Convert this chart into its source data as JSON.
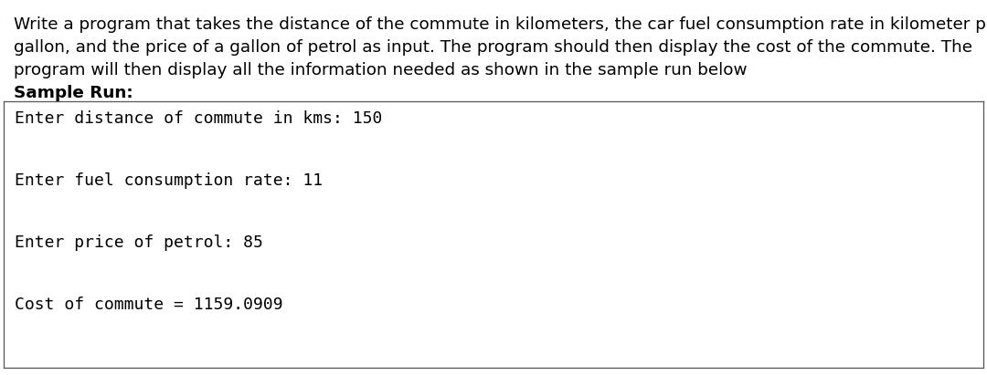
{
  "description_text": "Write a program that takes the distance of the commute in kilometers, the car fuel consumption rate in kilometer per\ngallon, and the price of a gallon of petrol as input. The program should then display the cost of the commute. The\nprogram will then display all the information needed as shown in the sample run below",
  "sample_run_label": "Sample Run:",
  "terminal_lines": [
    "Enter distance of commute in kms: 150",
    "Enter fuel consumption rate: 11",
    "Enter price of petrol: 85",
    "Cost of commute = 1159.0909"
  ],
  "bg_color": "#ffffff",
  "text_color": "#000000",
  "terminal_bg": "#ffffff",
  "terminal_border": "#555555",
  "desc_fontsize": 13.2,
  "sample_run_fontsize": 13.2,
  "terminal_fontsize": 13.0,
  "font_family": "DejaVu Sans",
  "mono_font": "DejaVu Sans Mono",
  "fig_width": 10.8,
  "fig_height": 4.11,
  "dpi": 100
}
